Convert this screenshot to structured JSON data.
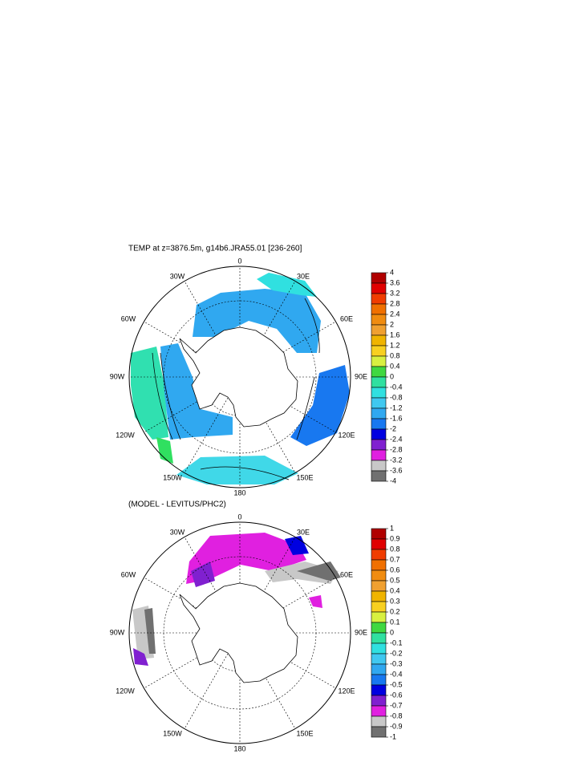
{
  "longitude_labels": [
    "0",
    "30E",
    "60E",
    "90E",
    "120E",
    "150E",
    "180",
    "150W",
    "120W",
    "90W",
    "60W",
    "30W"
  ],
  "panels": [
    {
      "title": "TEMP at z=3876.5m, g14b6.JRA55.01 [236-260]",
      "colorbar": {
        "levels": [
          4,
          3.6,
          3.2,
          2.8,
          2.4,
          2,
          1.6,
          1.2,
          0.8,
          0.4,
          0,
          -0.4,
          -0.8,
          -1.2,
          -1.6,
          -2,
          -2.4,
          -2.8,
          -3.2,
          -3.6,
          -4
        ],
        "colors": [
          "#b00000",
          "#e00000",
          "#f03c00",
          "#f07000",
          "#f08c10",
          "#f0a030",
          "#f0b400",
          "#f8d020",
          "#d8f040",
          "#40d840",
          "#30e0a0",
          "#30e0e0",
          "#40c8f0",
          "#30a8f0",
          "#1878f0",
          "#0000e0",
          "#8020d0",
          "#e020e0",
          "#c8c8c8",
          "#707070"
        ]
      }
    },
    {
      "title": "(MODEL - LEVITUS/PHC2)",
      "colorbar": {
        "levels": [
          1,
          0.9,
          0.8,
          0.7,
          0.6,
          0.5,
          0.4,
          0.3,
          0.2,
          0.1,
          0,
          -0.1,
          -0.2,
          -0.3,
          -0.4,
          -0.5,
          -0.6,
          -0.7,
          -0.8,
          -0.9,
          -1
        ],
        "colors": [
          "#b00000",
          "#e00000",
          "#f03c00",
          "#f07000",
          "#f08c10",
          "#f0a030",
          "#f0b400",
          "#f8d020",
          "#d8f040",
          "#40d840",
          "#30e0a0",
          "#30e0e0",
          "#40c8f0",
          "#30a8f0",
          "#1878f0",
          "#0000e0",
          "#8020d0",
          "#e020e0",
          "#c8c8c8",
          "#707070"
        ]
      }
    }
  ]
}
